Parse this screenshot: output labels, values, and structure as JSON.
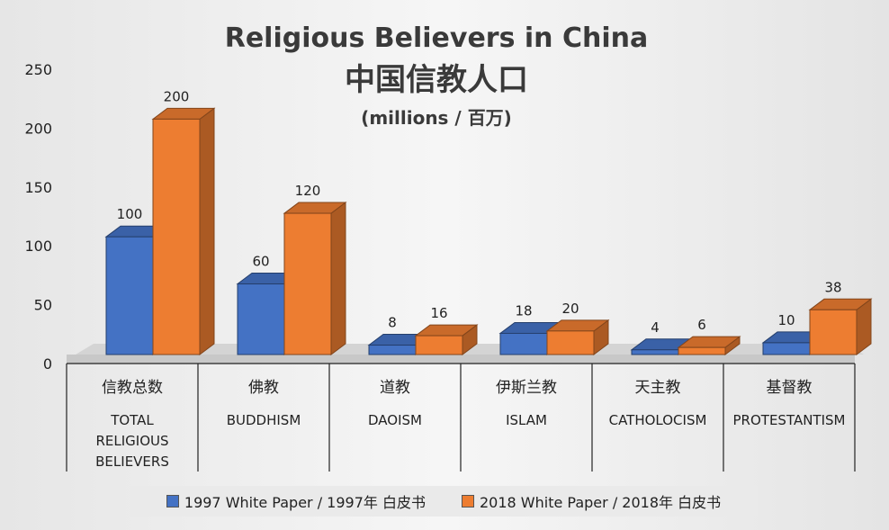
{
  "chart_data": {
    "type": "bar",
    "title": [
      "Religious Believers in China",
      "中国信教人口",
      "(millions / 百万)"
    ],
    "categories": [
      {
        "cn": "信教总数",
        "en": [
          "TOTAL",
          "RELIGIOUS",
          "BELIEVERS"
        ]
      },
      {
        "cn": "佛教",
        "en": [
          "BUDDHISM"
        ]
      },
      {
        "cn": "道教",
        "en": [
          "DAOISM"
        ]
      },
      {
        "cn": "伊斯兰教",
        "en": [
          "ISLAM"
        ]
      },
      {
        "cn": "天主教",
        "en": [
          "CATHOLOCISM"
        ]
      },
      {
        "cn": "基督教",
        "en": [
          "PROTESTANTISM"
        ]
      }
    ],
    "series": [
      {
        "name": "1997 White Paper / 1997年 白皮书",
        "values": [
          100,
          60,
          8,
          18,
          4,
          10
        ],
        "color": "#4472C4"
      },
      {
        "name": "2018 White Paper / 2018年 白皮书",
        "values": [
          200,
          120,
          16,
          20,
          6,
          38
        ],
        "color": "#ED7D31"
      }
    ],
    "ylim": [
      0,
      250
    ],
    "yticks": [
      0,
      50,
      100,
      150,
      200,
      250
    ],
    "grid": false,
    "legend_position": "bottom",
    "chart_style": "3d-clustered-bar"
  }
}
